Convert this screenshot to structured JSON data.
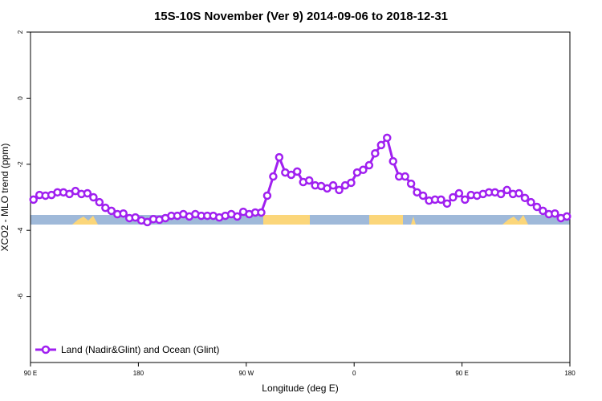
{
  "chart_data": {
    "type": "line",
    "title": "15S-10S November (Ver 9)   2014-09-06 to 2018-12-31",
    "x_label": "Longitude (deg E)",
    "y_label": "XCO2 - MLO trend (ppm)",
    "xlim": [
      90,
      540
    ],
    "xticks": [
      {
        "value": 90,
        "label": "90 E"
      },
      {
        "value": 180,
        "label": "180"
      },
      {
        "value": 270,
        "label": "90 W"
      },
      {
        "value": 360,
        "label": "0"
      },
      {
        "value": 450,
        "label": "90 E"
      },
      {
        "value": 540,
        "label": "180"
      }
    ],
    "ylim": [
      -8,
      2
    ],
    "yticks": [
      2,
      0,
      -2,
      -4,
      -6
    ],
    "legend": "lower left",
    "x": [
      92.5,
      97.5,
      102.5,
      107.5,
      112.5,
      117.5,
      122.5,
      127.5,
      132.5,
      137.5,
      142.5,
      147.5,
      152.5,
      157.5,
      162.5,
      167.5,
      172.5,
      177.5,
      182.5,
      187.5,
      192.5,
      197.5,
      202.5,
      207.5,
      212.5,
      217.5,
      222.5,
      227.5,
      232.5,
      237.5,
      242.5,
      247.5,
      252.5,
      257.5,
      262.5,
      267.5,
      272.5,
      277.5,
      282.5,
      287.5,
      292.5,
      297.5,
      302.5,
      307.5,
      312.5,
      317.5,
      322.5,
      327.5,
      332.5,
      337.5,
      342.5,
      347.5,
      352.5,
      357.5,
      362.5,
      367.5,
      372.5,
      377.5,
      382.5,
      387.5,
      392.5,
      397.5,
      402.5,
      407.5,
      412.5,
      417.5,
      422.5,
      427.5,
      432.5,
      437.5,
      442.5,
      447.5,
      452.5,
      457.5,
      462.5,
      467.5,
      472.5,
      477.5,
      482.5,
      487.5,
      492.5,
      497.5,
      502.5,
      507.5,
      512.5,
      517.5,
      522.5,
      527.5,
      532.5,
      537.5
    ],
    "series": [
      {
        "name": "Land (Nadir&Glint) and Ocean (Glint)",
        "color": "#a020f0",
        "values": [
          -3.07,
          -2.93,
          -2.95,
          -2.93,
          -2.85,
          -2.85,
          -2.9,
          -2.81,
          -2.9,
          -2.88,
          -3.0,
          -3.15,
          -3.32,
          -3.41,
          -3.51,
          -3.49,
          -3.63,
          -3.61,
          -3.7,
          -3.75,
          -3.66,
          -3.68,
          -3.63,
          -3.56,
          -3.56,
          -3.51,
          -3.58,
          -3.51,
          -3.56,
          -3.56,
          -3.56,
          -3.61,
          -3.56,
          -3.51,
          -3.58,
          -3.44,
          -3.51,
          -3.46,
          -3.46,
          -2.95,
          -2.37,
          -1.79,
          -2.25,
          -2.32,
          -2.22,
          -2.54,
          -2.49,
          -2.64,
          -2.66,
          -2.73,
          -2.64,
          -2.78,
          -2.64,
          -2.56,
          -2.25,
          -2.17,
          -2.03,
          -1.67,
          -1.42,
          -1.2,
          -1.91,
          -2.37,
          -2.37,
          -2.59,
          -2.85,
          -2.95,
          -3.1,
          -3.07,
          -3.07,
          -3.19,
          -3.0,
          -2.88,
          -3.07,
          -2.93,
          -2.95,
          -2.9,
          -2.85,
          -2.85,
          -2.9,
          -2.78,
          -2.9,
          -2.88,
          -3.02,
          -3.15,
          -3.29,
          -3.41,
          -3.51,
          -3.49,
          -3.63,
          -3.58
        ]
      }
    ]
  }
}
